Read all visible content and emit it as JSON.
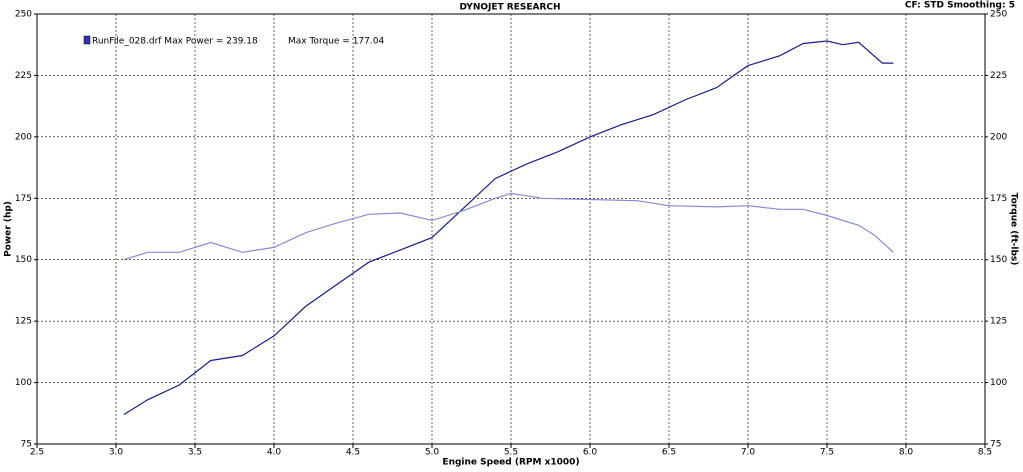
{
  "chart_data": {
    "type": "line",
    "title": "DYNOJET RESEARCH",
    "subtitle": "CF: STD  Smoothing: 5",
    "annotations": [
      "RunFile_028.drf Max Power = 239.18",
      "Max Torque = 177.04"
    ],
    "legend_color": "#3333aa",
    "xlabel": "Engine Speed (RPM x1000)",
    "ylabel": "Power (hp)",
    "y2label": "Torque (ft-lbs)",
    "xlim": [
      2.5,
      8.5
    ],
    "xticks": [
      2.5,
      {
        "value": 3,
        "label": "3.0"
      },
      3.5,
      {
        "value": 4,
        "label": "4.0"
      },
      4.5,
      {
        "value": 5,
        "label": "5.0"
      },
      5.5,
      {
        "value": 6,
        "label": "6.0"
      },
      6.5,
      {
        "value": 7,
        "label": "7.0"
      },
      7.5,
      {
        "value": 8,
        "label": "8.0"
      },
      8.5
    ],
    "ylim": [
      75,
      250
    ],
    "yticks": [
      75,
      100,
      125,
      150,
      175,
      200,
      225,
      250
    ],
    "y2lim": [
      75,
      250
    ],
    "y2ticks": [
      75,
      100,
      125,
      150,
      175,
      200,
      225,
      250
    ],
    "grid": true,
    "series": [
      {
        "color": "#1c1c8a",
        "x": [
          3.05,
          3.2,
          3.4,
          3.6,
          3.8,
          4.0,
          4.2,
          4.4,
          4.6,
          4.8,
          5.0,
          5.2,
          5.4,
          5.6,
          5.8,
          6.0,
          6.2,
          6.4,
          6.6,
          6.8,
          7.0,
          7.2,
          7.35,
          7.5,
          7.6,
          7.7,
          7.85,
          7.92
        ],
        "values": [
          87,
          93,
          99,
          109,
          111,
          119,
          131,
          140,
          149,
          154,
          159,
          171,
          183,
          189,
          194,
          200,
          205,
          209,
          215,
          220,
          229,
          233,
          238,
          239,
          237.5,
          238.5,
          230,
          230
        ]
      },
      {
        "color": "#8a8ad0",
        "axis": "y2",
        "x": [
          3.05,
          3.2,
          3.4,
          3.6,
          3.8,
          4.0,
          4.2,
          4.4,
          4.6,
          4.8,
          5.0,
          5.2,
          5.4,
          5.5,
          5.7,
          6.0,
          6.3,
          6.5,
          6.8,
          7.0,
          7.2,
          7.35,
          7.5,
          7.7,
          7.8,
          7.92
        ],
        "values": [
          150,
          153,
          153,
          157,
          153,
          155,
          161,
          165,
          168.5,
          169,
          166,
          170,
          175,
          177,
          175,
          174.5,
          174,
          172,
          171.5,
          172,
          170.5,
          170.5,
          168,
          164,
          160,
          153
        ]
      }
    ]
  }
}
